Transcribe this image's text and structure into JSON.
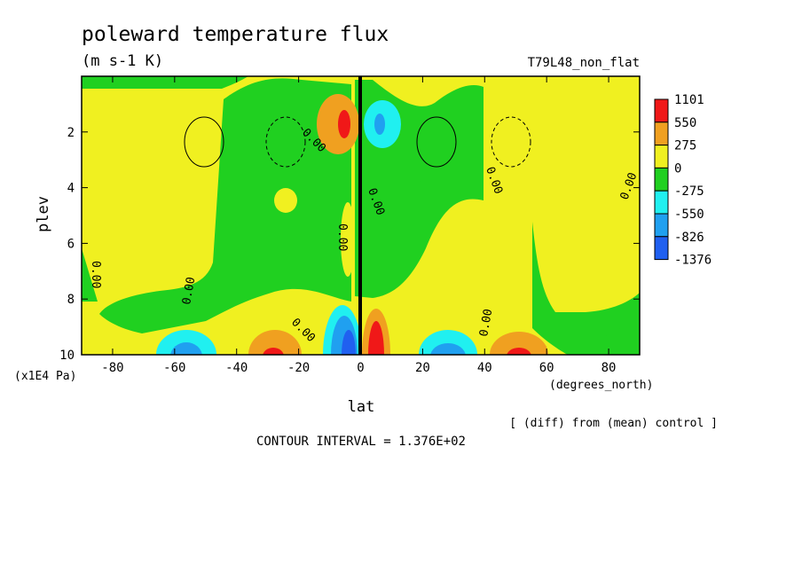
{
  "chart_data": {
    "type": "heatmap",
    "title": "poleward temperature flux",
    "subtitle": "(m s-1 K)",
    "run_label": "T79L48_non_flat",
    "xlabel": "lat",
    "x_units": "(degrees_north)",
    "ylabel": "plev",
    "y_units": "(x1E4 Pa)",
    "xlim": [
      -90,
      90
    ],
    "ylim": [
      0,
      10
    ],
    "y_inverted": true,
    "x_ticks": [
      "-80",
      "-60",
      "-40",
      "-20",
      "0",
      "20",
      "40",
      "60",
      "80"
    ],
    "y_ticks": [
      "2",
      "4",
      "6",
      "8",
      "10"
    ],
    "diff_note": "[ (diff) from (mean) control ]",
    "contour_interval": "CONTOUR INTERVAL = 1.376E+02",
    "contour_labels": [
      "0.00",
      "0.00",
      "0.00",
      "0.00",
      "0.00",
      "0.00",
      "0.00",
      "0.00",
      "0.00"
    ],
    "legend": {
      "placement": "right",
      "labels": [
        "1101",
        "550",
        "275",
        "0",
        "-275",
        "-550",
        "-826",
        "-1376"
      ],
      "colors": [
        "#f01818",
        "#f0a020",
        "#f0f020",
        "#20d020",
        "#20f0f0",
        "#20a0f0",
        "#2060f0"
      ]
    },
    "field_features": [
      {
        "lat": -4,
        "plev": 1.8,
        "value": 1101
      },
      {
        "lat": 4,
        "plev": 1.8,
        "value": -826
      },
      {
        "lat": -30,
        "plev": 9.6,
        "value": 1101
      },
      {
        "lat": -52,
        "plev": 9.4,
        "value": -826
      },
      {
        "lat": -8,
        "plev": 9.5,
        "value": -1376
      },
      {
        "lat": 6,
        "plev": 9.4,
        "value": 1101
      },
      {
        "lat": 28,
        "plev": 9.5,
        "value": -826
      },
      {
        "lat": 48,
        "plev": 9.6,
        "value": 1101
      }
    ]
  }
}
